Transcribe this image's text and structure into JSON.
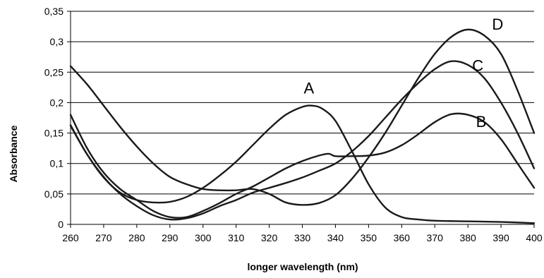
{
  "chart_data": {
    "type": "line",
    "title": "",
    "xlabel": "longer wavelength (nm)",
    "ylabel": "Absorbance",
    "xlim": [
      260,
      400
    ],
    "ylim": [
      0,
      0.35
    ],
    "x_ticks": [
      "260",
      "270",
      "280",
      "290",
      "300",
      "310",
      "320",
      "330",
      "340",
      "350",
      "360",
      "370",
      "380",
      "390",
      "400"
    ],
    "y_ticks": [
      "0",
      "0,05",
      "0,1",
      "0,15",
      "0,2",
      "0,25",
      "0,3",
      "0,35"
    ],
    "grid": "horizontal",
    "legend": "none",
    "line_color": "#1a1a1a",
    "series": [
      {
        "name": "A",
        "label_at": [
          332,
          0.215
        ],
        "points": [
          [
            260,
            0.163
          ],
          [
            265,
            0.115
          ],
          [
            270,
            0.077
          ],
          [
            275,
            0.052
          ],
          [
            280,
            0.04
          ],
          [
            285,
            0.036
          ],
          [
            290,
            0.037
          ],
          [
            295,
            0.045
          ],
          [
            300,
            0.06
          ],
          [
            305,
            0.08
          ],
          [
            310,
            0.103
          ],
          [
            315,
            0.13
          ],
          [
            320,
            0.157
          ],
          [
            325,
            0.18
          ],
          [
            330,
            0.193
          ],
          [
            333,
            0.195
          ],
          [
            336,
            0.19
          ],
          [
            340,
            0.17
          ],
          [
            345,
            0.12
          ],
          [
            350,
            0.066
          ],
          [
            355,
            0.028
          ],
          [
            360,
            0.012
          ],
          [
            365,
            0.008
          ],
          [
            370,
            0.006
          ],
          [
            380,
            0.005
          ],
          [
            390,
            0.004
          ],
          [
            400,
            0.002
          ]
        ]
      },
      {
        "name": "B",
        "label_at": [
          384,
          0.16
        ],
        "points": [
          [
            260,
            0.18
          ],
          [
            265,
            0.125
          ],
          [
            270,
            0.085
          ],
          [
            275,
            0.058
          ],
          [
            280,
            0.04
          ],
          [
            285,
            0.022
          ],
          [
            290,
            0.012
          ],
          [
            295,
            0.012
          ],
          [
            300,
            0.022
          ],
          [
            305,
            0.035
          ],
          [
            310,
            0.05
          ],
          [
            315,
            0.062
          ],
          [
            320,
            0.077
          ],
          [
            325,
            0.092
          ],
          [
            330,
            0.104
          ],
          [
            335,
            0.113
          ],
          [
            338,
            0.116
          ],
          [
            340,
            0.112
          ],
          [
            345,
            0.112
          ],
          [
            350,
            0.113
          ],
          [
            355,
            0.118
          ],
          [
            360,
            0.13
          ],
          [
            365,
            0.148
          ],
          [
            370,
            0.168
          ],
          [
            375,
            0.181
          ],
          [
            380,
            0.18
          ],
          [
            385,
            0.168
          ],
          [
            390,
            0.14
          ],
          [
            395,
            0.1
          ],
          [
            400,
            0.06
          ]
        ]
      },
      {
        "name": "C",
        "label_at": [
          383,
          0.252
        ],
        "points": [
          [
            260,
            0.162
          ],
          [
            265,
            0.115
          ],
          [
            270,
            0.078
          ],
          [
            275,
            0.05
          ],
          [
            280,
            0.03
          ],
          [
            285,
            0.015
          ],
          [
            290,
            0.008
          ],
          [
            295,
            0.01
          ],
          [
            300,
            0.018
          ],
          [
            305,
            0.03
          ],
          [
            310,
            0.04
          ],
          [
            315,
            0.052
          ],
          [
            320,
            0.06
          ],
          [
            325,
            0.068
          ],
          [
            330,
            0.077
          ],
          [
            335,
            0.088
          ],
          [
            340,
            0.1
          ],
          [
            345,
            0.12
          ],
          [
            350,
            0.145
          ],
          [
            355,
            0.175
          ],
          [
            360,
            0.205
          ],
          [
            365,
            0.232
          ],
          [
            370,
            0.255
          ],
          [
            375,
            0.268
          ],
          [
            380,
            0.262
          ],
          [
            385,
            0.24
          ],
          [
            390,
            0.2
          ],
          [
            395,
            0.15
          ],
          [
            400,
            0.092
          ]
        ]
      },
      {
        "name": "D",
        "label_at": [
          389,
          0.32
        ],
        "points": [
          [
            260,
            0.26
          ],
          [
            265,
            0.23
          ],
          [
            270,
            0.195
          ],
          [
            275,
            0.16
          ],
          [
            280,
            0.128
          ],
          [
            285,
            0.1
          ],
          [
            290,
            0.078
          ],
          [
            295,
            0.066
          ],
          [
            300,
            0.058
          ],
          [
            305,
            0.056
          ],
          [
            310,
            0.056
          ],
          [
            315,
            0.058
          ],
          [
            320,
            0.05
          ],
          [
            325,
            0.036
          ],
          [
            330,
            0.032
          ],
          [
            335,
            0.035
          ],
          [
            340,
            0.048
          ],
          [
            345,
            0.075
          ],
          [
            350,
            0.11
          ],
          [
            355,
            0.15
          ],
          [
            360,
            0.195
          ],
          [
            365,
            0.24
          ],
          [
            370,
            0.28
          ],
          [
            375,
            0.308
          ],
          [
            380,
            0.32
          ],
          [
            385,
            0.31
          ],
          [
            390,
            0.28
          ],
          [
            395,
            0.22
          ],
          [
            400,
            0.15
          ]
        ]
      }
    ]
  }
}
